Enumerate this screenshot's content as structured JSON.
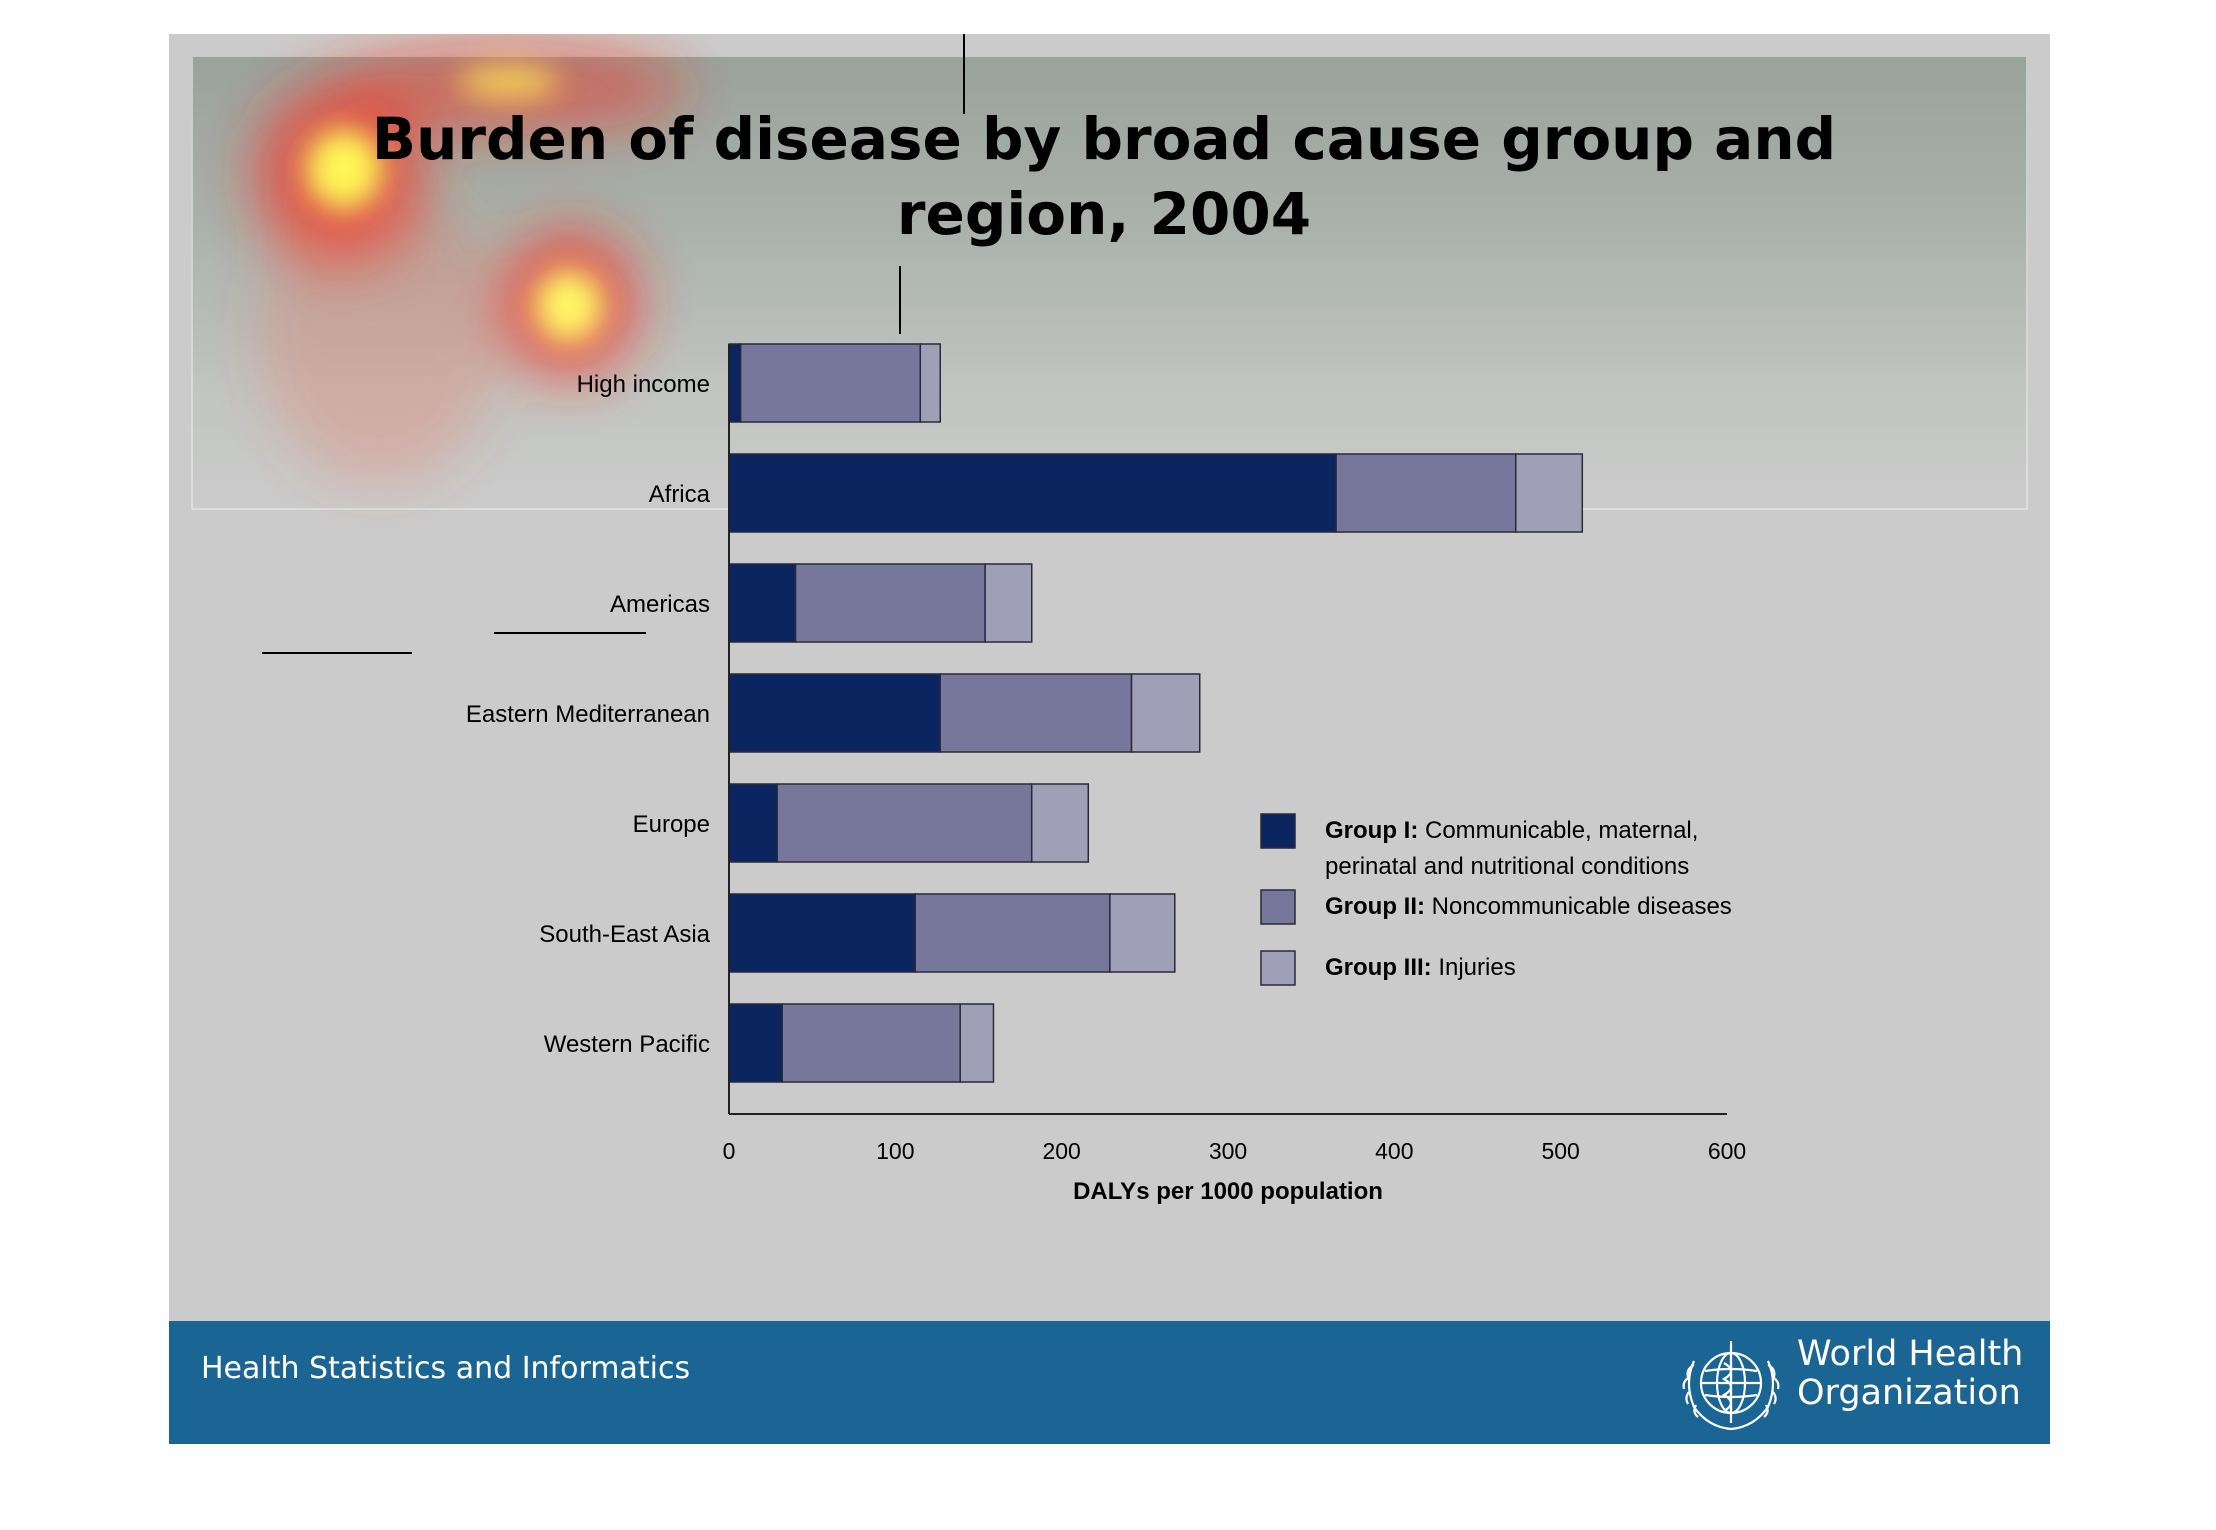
{
  "slide": {
    "title_line1": "Burden of disease by broad cause group and",
    "title_line2": "region, 2004"
  },
  "chart_data": {
    "type": "bar",
    "orientation": "horizontal",
    "stacked": true,
    "categories": [
      "High income",
      "Africa",
      "Americas",
      "Eastern Mediterranean",
      "Europe",
      "South-East Asia",
      "Western Pacific"
    ],
    "series": [
      {
        "name": "Group I",
        "values": [
          7,
          365,
          40,
          127,
          29,
          112,
          32
        ],
        "color": "#0b2560"
      },
      {
        "name": "Group II",
        "values": [
          108,
          108,
          114,
          115,
          153,
          117,
          107
        ],
        "color": "#77779b"
      },
      {
        "name": "Group III",
        "values": [
          12,
          40,
          28,
          41,
          34,
          39,
          20
        ],
        "color": "#9f9fb7"
      }
    ],
    "xlabel": "DALYs per 1000 population",
    "xlim": [
      0,
      600
    ],
    "xticks": [
      "0",
      "100",
      "200",
      "300",
      "400",
      "500",
      "600"
    ],
    "grid": false,
    "legend_position": "right",
    "legend": [
      {
        "bold": "Group I:",
        "text_line1": "Communicable, maternal,",
        "text_line2": "perinatal and nutritional conditions",
        "color": "#0b2560"
      },
      {
        "bold": "Group II:",
        "text_line1": "Noncommunicable diseases",
        "text_line2": "",
        "color": "#77779b"
      },
      {
        "bold": "Group III:",
        "text_line1": "Injuries",
        "text_line2": "",
        "color": "#9f9fb7"
      }
    ]
  },
  "footer": {
    "text": "Health Statistics and Informatics",
    "org_line1": "World Health",
    "org_line2": "Organization",
    "band_color": "#1b6594"
  },
  "heatmap_overlay": {
    "colors": [
      "#ffff66",
      "#ff3300"
    ]
  }
}
